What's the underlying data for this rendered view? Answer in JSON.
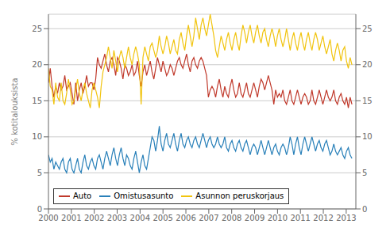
{
  "chart_data": {
    "type": "line",
    "ylabel": "% kotitalouksista",
    "x": [
      2000,
      2000.0793,
      2000.1587,
      2000.238,
      2000.3174,
      2000.3967,
      2000.476,
      2000.5554,
      2000.6347,
      2000.7141,
      2000.7934,
      2000.8728,
      2000.9521,
      2001.0314,
      2001.1108,
      2001.1901,
      2001.2695,
      2001.3488,
      2001.4281,
      2001.5075,
      2001.5868,
      2001.6662,
      2001.7455,
      2001.8249,
      2001.9042,
      2001.9835,
      2002.0629,
      2002.1422,
      2002.2216,
      2002.3009,
      2002.3802,
      2002.4596,
      2002.5389,
      2002.6183,
      2002.6976,
      2002.7769,
      2002.8563,
      2002.9356,
      2003.015,
      2003.0943,
      2003.1737,
      2003.253,
      2003.3323,
      2003.4117,
      2003.491,
      2003.5704,
      2003.6497,
      2003.729,
      2003.8084,
      2003.8877,
      2003.9671,
      2004.0464,
      2004.1257,
      2004.2051,
      2004.2844,
      2004.3638,
      2004.4431,
      2004.5225,
      2004.6018,
      2004.6811,
      2004.7605,
      2004.8398,
      2004.9192,
      2004.9985,
      2005.0778,
      2005.1572,
      2005.2365,
      2005.3159,
      2005.3952,
      2005.4746,
      2005.5539,
      2005.6332,
      2005.7126,
      2005.7919,
      2005.8713,
      2005.9506,
      2006.0299,
      2006.1093,
      2006.1886,
      2006.268,
      2006.3473,
      2006.4266,
      2006.506,
      2006.5853,
      2006.6647,
      2006.744,
      2006.8234,
      2006.9027,
      2006.982,
      2007.0614,
      2007.1407,
      2007.2201,
      2007.2994,
      2007.3787,
      2007.4581,
      2007.5374,
      2007.6168,
      2007.6961,
      2007.7754,
      2007.8548,
      2007.9341,
      2008.0135,
      2008.0928,
      2008.1722,
      2008.2515,
      2008.3308,
      2008.4102,
      2008.4895,
      2008.5689,
      2008.6482,
      2008.7275,
      2008.8069,
      2008.8862,
      2008.9656,
      2009.0449,
      2009.1243,
      2009.2036,
      2009.2829,
      2009.3623,
      2009.4416,
      2009.521,
      2009.6003,
      2009.6796,
      2009.759,
      2009.8383,
      2009.9177,
      2009.997,
      2010.0763,
      2010.1557,
      2010.235,
      2010.3144,
      2010.3937,
      2010.4731,
      2010.5524,
      2010.6317,
      2010.7111,
      2010.7904,
      2010.8698,
      2010.9491,
      2011.0284,
      2011.1078,
      2011.1871,
      2011.2665,
      2011.3458,
      2011.4251,
      2011.5045,
      2011.5838,
      2011.6632,
      2011.7425,
      2011.8219,
      2011.9012,
      2011.9805,
      2012.0599,
      2012.1392,
      2012.2186,
      2012.2979,
      2012.3772,
      2012.4566,
      2012.5359,
      2012.6153,
      2012.6946,
      2012.774,
      2012.8533,
      2012.9326,
      2013.012,
      2013.0913,
      2013.1707,
      2013.25
    ],
    "series": [
      {
        "name": "Auto",
        "color": "#c0392b",
        "values": [
          17.5,
          19.5,
          17.0,
          15.5,
          17.0,
          16.0,
          17.5,
          16.5,
          17.0,
          18.5,
          16.5,
          17.0,
          17.5,
          16.0,
          14.5,
          17.5,
          15.0,
          16.5,
          17.5,
          16.0,
          17.0,
          18.5,
          17.0,
          17.5,
          17.5,
          16.5,
          18.0,
          21.0,
          20.0,
          19.5,
          20.5,
          21.5,
          20.0,
          19.0,
          20.5,
          21.0,
          20.0,
          18.5,
          21.0,
          20.5,
          19.5,
          18.0,
          20.0,
          19.5,
          18.5,
          19.0,
          20.0,
          18.5,
          19.0,
          20.5,
          18.5,
          17.0,
          19.0,
          20.0,
          18.5,
          19.5,
          20.5,
          19.0,
          18.0,
          19.5,
          21.0,
          20.0,
          19.0,
          20.5,
          19.5,
          18.5,
          19.0,
          20.0,
          19.5,
          18.5,
          19.5,
          20.5,
          21.0,
          20.0,
          19.5,
          20.5,
          21.5,
          20.0,
          19.0,
          20.5,
          21.0,
          20.0,
          19.5,
          20.5,
          21.0,
          20.5,
          19.5,
          18.5,
          15.5,
          16.5,
          17.0,
          16.5,
          15.5,
          17.0,
          18.0,
          16.5,
          15.5,
          17.0,
          16.0,
          15.5,
          17.0,
          18.0,
          16.5,
          15.5,
          16.0,
          17.5,
          16.0,
          15.5,
          16.5,
          17.5,
          16.0,
          15.5,
          16.5,
          17.5,
          16.5,
          15.5,
          17.0,
          18.0,
          17.5,
          16.5,
          17.5,
          18.5,
          17.5,
          16.5,
          14.5,
          16.5,
          15.5,
          16.0,
          15.5,
          16.5,
          15.0,
          14.5,
          15.5,
          16.5,
          15.0,
          14.5,
          15.5,
          16.5,
          15.5,
          14.5,
          15.5,
          16.0,
          15.5,
          14.5,
          15.0,
          16.5,
          15.0,
          14.5,
          15.5,
          16.5,
          15.5,
          14.5,
          15.5,
          16.5,
          15.5,
          15.0,
          15.5,
          16.5,
          15.0,
          14.5,
          15.5,
          16.0,
          15.0,
          14.5,
          15.5,
          14.0,
          15.5,
          14.5
        ]
      },
      {
        "name": "Omistusasunto",
        "color": "#2980b9",
        "values": [
          7.5,
          6.5,
          7.0,
          5.5,
          6.5,
          6.0,
          5.5,
          6.5,
          7.0,
          5.5,
          5.0,
          6.5,
          7.0,
          5.5,
          5.0,
          6.0,
          7.0,
          5.5,
          5.0,
          6.5,
          7.5,
          6.0,
          5.5,
          6.5,
          7.0,
          6.0,
          5.5,
          7.0,
          7.5,
          6.5,
          5.5,
          7.0,
          8.0,
          7.0,
          6.0,
          7.5,
          8.5,
          7.0,
          6.0,
          7.5,
          8.5,
          7.0,
          6.0,
          7.5,
          7.0,
          6.0,
          5.5,
          7.0,
          8.0,
          6.5,
          5.0,
          6.5,
          7.5,
          6.0,
          5.5,
          7.0,
          8.5,
          10.0,
          9.5,
          8.0,
          9.5,
          11.5,
          9.0,
          8.0,
          9.5,
          10.5,
          9.0,
          8.5,
          9.5,
          10.5,
          9.0,
          8.0,
          9.5,
          10.5,
          9.0,
          8.5,
          9.5,
          10.0,
          9.0,
          8.5,
          9.5,
          10.0,
          9.0,
          8.5,
          9.5,
          10.5,
          9.5,
          8.5,
          9.5,
          10.0,
          9.0,
          8.5,
          9.0,
          10.0,
          9.0,
          8.5,
          9.0,
          10.0,
          8.5,
          8.0,
          9.0,
          9.5,
          8.5,
          8.0,
          9.0,
          9.5,
          8.5,
          8.0,
          9.0,
          9.5,
          8.5,
          7.5,
          8.5,
          9.0,
          8.5,
          7.5,
          8.5,
          9.5,
          8.5,
          7.5,
          8.5,
          9.5,
          8.5,
          7.5,
          8.5,
          9.0,
          8.0,
          7.5,
          8.5,
          9.0,
          8.5,
          7.5,
          8.5,
          10.0,
          9.0,
          7.5,
          9.0,
          10.0,
          8.5,
          7.5,
          9.0,
          10.0,
          9.0,
          8.0,
          9.0,
          10.0,
          9.0,
          8.0,
          9.0,
          9.5,
          8.5,
          8.0,
          9.0,
          9.5,
          8.5,
          7.5,
          8.0,
          9.0,
          8.0,
          7.5,
          8.0,
          8.5,
          7.5,
          7.0,
          8.0,
          8.5,
          7.5,
          7.0
        ]
      },
      {
        "name": "Asunnon peruskorjaus",
        "color": "#f1c40f",
        "values": [
          19.5,
          17.0,
          16.5,
          14.5,
          17.5,
          15.5,
          15.0,
          17.5,
          15.0,
          14.5,
          16.0,
          18.0,
          16.5,
          14.5,
          15.0,
          16.5,
          18.0,
          16.0,
          15.0,
          16.5,
          17.5,
          16.0,
          15.0,
          14.0,
          16.5,
          17.5,
          16.5,
          15.5,
          14.0,
          17.0,
          19.0,
          20.0,
          21.0,
          22.5,
          21.0,
          19.5,
          22.0,
          20.5,
          19.0,
          21.0,
          22.0,
          21.0,
          19.5,
          21.0,
          22.5,
          21.0,
          20.0,
          21.5,
          22.5,
          21.5,
          20.0,
          14.5,
          21.0,
          22.5,
          21.5,
          20.5,
          22.5,
          23.0,
          22.0,
          21.0,
          22.0,
          24.0,
          22.5,
          21.5,
          22.5,
          24.0,
          23.0,
          21.5,
          22.5,
          23.5,
          22.0,
          21.5,
          23.5,
          24.5,
          23.0,
          22.0,
          24.0,
          25.5,
          24.0,
          22.5,
          24.0,
          26.5,
          25.0,
          23.5,
          25.5,
          26.5,
          25.0,
          24.0,
          25.5,
          27.0,
          25.5,
          24.0,
          22.0,
          21.0,
          22.5,
          24.0,
          23.0,
          22.0,
          23.5,
          24.5,
          23.0,
          22.0,
          23.5,
          24.5,
          23.0,
          22.0,
          24.0,
          25.5,
          24.5,
          23.0,
          24.5,
          25.5,
          24.0,
          23.0,
          24.5,
          25.5,
          24.0,
          23.0,
          24.5,
          25.0,
          23.5,
          22.5,
          24.0,
          25.0,
          24.0,
          22.5,
          24.0,
          25.0,
          23.5,
          22.5,
          23.5,
          25.0,
          23.5,
          22.0,
          23.5,
          24.5,
          23.0,
          22.0,
          23.5,
          24.5,
          23.0,
          22.0,
          23.5,
          24.5,
          23.0,
          22.0,
          23.5,
          24.5,
          23.5,
          22.0,
          23.0,
          24.0,
          22.5,
          21.5,
          22.5,
          23.5,
          21.5,
          20.5,
          22.0,
          23.0,
          22.0,
          20.5,
          22.0,
          22.5,
          20.5,
          19.5,
          21.0,
          20.0
        ]
      }
    ],
    "xlim": [
      2000.0,
      2013.42
    ],
    "xticks": [
      2000,
      2001,
      2002,
      2003,
      2004,
      2005,
      2006,
      2007,
      2008,
      2009,
      2010,
      2011,
      2012,
      2013
    ],
    "ylim": [
      0,
      27
    ],
    "yticks": [
      0,
      5,
      10,
      15,
      20,
      25
    ],
    "y2lim": [
      0,
      27
    ],
    "y2ticks": [
      0,
      5,
      10,
      15,
      20,
      25
    ],
    "grid": "y",
    "legend": "lower left"
  }
}
